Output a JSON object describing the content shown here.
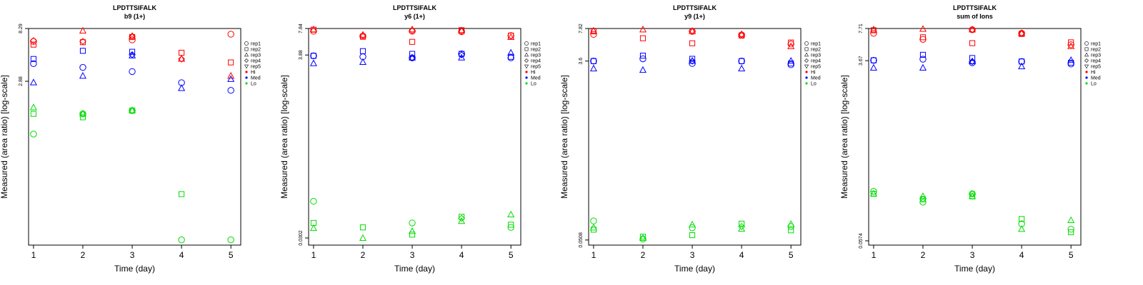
{
  "colors": {
    "Hi": "#ff0000",
    "Med": "#0000ff",
    "Lo": "#00dd00",
    "axis": "#000000"
  },
  "legend": {
    "entries": [
      {
        "label": "rep1",
        "symbol": "circle"
      },
      {
        "label": "rep2",
        "symbol": "square"
      },
      {
        "label": "rep3",
        "symbol": "triangle-up"
      },
      {
        "label": "rep4",
        "symbol": "diamond"
      },
      {
        "label": "rep5",
        "symbol": "triangle-down"
      },
      {
        "label": "Hi",
        "symbol": "dot",
        "color_key": "Hi"
      },
      {
        "label": "Med",
        "symbol": "dot",
        "color_key": "Med"
      },
      {
        "label": "Lo",
        "symbol": "dot",
        "color_key": "Lo"
      }
    ],
    "placement": "right"
  },
  "chart_data": [
    {
      "type": "scatter",
      "title": "LPDTTSIFALK",
      "subtitle": "b9 (1+)",
      "xlabel": "Time (day)",
      "ylabel": "Measured (area ratio) [log-scale]",
      "y_scale": "log",
      "x": [
        1,
        2,
        3,
        4,
        5
      ],
      "xlim": [
        0.9,
        5.2
      ],
      "ylim": [
        0.108,
        8.29
      ],
      "y_ticks": [
        "2.88",
        "8.29"
      ],
      "y_tick_values": [
        2.88,
        8.29
      ],
      "series": [
        {
          "level": "Hi",
          "rep": "rep1",
          "values": [
            6.4,
            null,
            6.6,
            null,
            7.4
          ]
        },
        {
          "level": "Hi",
          "rep": "rep2",
          "values": [
            6.0,
            6.3,
            7.0,
            5.1,
            4.2
          ]
        },
        {
          "level": "Hi",
          "rep": "rep3",
          "values": [
            null,
            7.9,
            7.1,
            4.5,
            3.2
          ]
        },
        {
          "level": "Hi",
          "rep": "rep4",
          "values": [
            6.5,
            6.4,
            7.1,
            4.5,
            null
          ]
        },
        {
          "level": "Med",
          "rep": "rep1",
          "values": [
            4.1,
            3.8,
            3.5,
            2.8,
            2.4
          ]
        },
        {
          "level": "Med",
          "rep": "rep2",
          "values": [
            4.5,
            5.3,
            5.2,
            null,
            null
          ]
        },
        {
          "level": "Med",
          "rep": "rep3",
          "values": [
            2.8,
            3.2,
            4.8,
            2.5,
            3.0
          ]
        },
        {
          "level": "Med",
          "rep": "rep4",
          "values": [
            null,
            null,
            4.9,
            null,
            null
          ]
        },
        {
          "level": "Lo",
          "rep": "rep1",
          "values": [
            1.0,
            1.5,
            1.6,
            0.12,
            0.12
          ]
        },
        {
          "level": "Lo",
          "rep": "rep2",
          "values": [
            1.5,
            1.4,
            1.6,
            0.3,
            null
          ]
        },
        {
          "level": "Lo",
          "rep": "rep3",
          "values": [
            1.7,
            1.5,
            1.6,
            null,
            null
          ]
        },
        {
          "level": "Lo",
          "rep": "rep4",
          "values": [
            null,
            1.5,
            1.6,
            null,
            null
          ]
        }
      ]
    },
    {
      "type": "scatter",
      "title": "LPDTTSIFALK",
      "subtitle": "y6 (1+)",
      "xlabel": "Time (day)",
      "ylabel": "Measured (area ratio) [log-scale]",
      "y_scale": "log",
      "x": [
        1,
        2,
        3,
        4,
        5
      ],
      "xlim": [
        0.9,
        5.2
      ],
      "ylim": [
        0.025,
        7.84
      ],
      "y_ticks": [
        "0.0302",
        "3.88",
        "7.84"
      ],
      "y_tick_values": [
        0.0302,
        3.88,
        7.84
      ],
      "series": [
        {
          "level": "Hi",
          "rep": "rep1",
          "values": [
            7.3,
            6.4,
            7.3,
            7.2,
            6.5
          ]
        },
        {
          "level": "Hi",
          "rep": "rep2",
          "values": [
            7.6,
            6.3,
            5.5,
            7.5,
            6.5
          ]
        },
        {
          "level": "Hi",
          "rep": "rep3",
          "values": [
            7.6,
            6.6,
            7.6,
            7.4,
            6.2
          ]
        },
        {
          "level": "Hi",
          "rep": "rep4",
          "values": [
            null,
            6.5,
            7.4,
            7.3,
            null
          ]
        },
        {
          "level": "Med",
          "rep": "rep1",
          "values": [
            3.8,
            3.7,
            3.6,
            4.0,
            3.6
          ]
        },
        {
          "level": "Med",
          "rep": "rep2",
          "values": [
            3.8,
            4.3,
            4.0,
            4.0,
            3.7
          ]
        },
        {
          "level": "Med",
          "rep": "rep3",
          "values": [
            3.1,
            3.2,
            3.6,
            3.6,
            4.1
          ]
        },
        {
          "level": "Med",
          "rep": "rep4",
          "values": [
            null,
            null,
            3.6,
            3.9,
            null
          ]
        },
        {
          "level": "Lo",
          "rep": "rep1",
          "values": [
            0.08,
            null,
            0.045,
            null,
            0.04
          ]
        },
        {
          "level": "Lo",
          "rep": "rep2",
          "values": [
            0.045,
            0.04,
            0.033,
            0.053,
            0.043
          ]
        },
        {
          "level": "Lo",
          "rep": "rep3",
          "values": [
            0.039,
            0.03,
            0.036,
            0.047,
            0.056
          ]
        },
        {
          "level": "Lo",
          "rep": "rep4",
          "values": [
            null,
            null,
            null,
            0.051,
            null
          ]
        }
      ]
    },
    {
      "type": "scatter",
      "title": "LPDTTSIFALK",
      "subtitle": "y9 (1+)",
      "xlabel": "Time (day)",
      "ylabel": "Measured (area ratio) [log-scale]",
      "y_scale": "log",
      "x": [
        1,
        2,
        3,
        4,
        5
      ],
      "xlim": [
        0.9,
        5.2
      ],
      "ylim": [
        0.045,
        7.82
      ],
      "y_ticks": [
        "0.0508",
        "3.6",
        "7.82"
      ],
      "y_tick_values": [
        0.0508,
        3.6,
        7.82
      ],
      "series": [
        {
          "level": "Hi",
          "rep": "rep1",
          "values": [
            6.8,
            null,
            7.3,
            6.7,
            5.4
          ]
        },
        {
          "level": "Hi",
          "rep": "rep2",
          "values": [
            7.3,
            6.2,
            5.5,
            6.6,
            5.6
          ]
        },
        {
          "level": "Hi",
          "rep": "rep3",
          "values": [
            7.4,
            7.6,
            7.3,
            6.8,
            5.1
          ]
        },
        {
          "level": "Hi",
          "rep": "rep4",
          "values": [
            null,
            null,
            7.4,
            6.8,
            null
          ]
        },
        {
          "level": "Med",
          "rep": "rep1",
          "values": [
            3.6,
            3.8,
            3.4,
            3.6,
            3.3
          ]
        },
        {
          "level": "Med",
          "rep": "rep2",
          "values": [
            3.6,
            4.1,
            3.8,
            3.6,
            3.4
          ]
        },
        {
          "level": "Med",
          "rep": "rep3",
          "values": [
            3.0,
            2.9,
            3.6,
            3.0,
            3.6
          ]
        },
        {
          "level": "Med",
          "rep": "rep4",
          "values": [
            null,
            null,
            3.6,
            null,
            null
          ]
        },
        {
          "level": "Lo",
          "rep": "rep1",
          "values": [
            0.08,
            0.052,
            0.068,
            null,
            0.07
          ]
        },
        {
          "level": "Lo",
          "rep": "rep2",
          "values": [
            0.065,
            0.055,
            0.057,
            0.075,
            0.064
          ]
        },
        {
          "level": "Lo",
          "rep": "rep3",
          "values": [
            0.068,
            0.053,
            0.073,
            0.066,
            0.074
          ]
        },
        {
          "level": "Lo",
          "rep": "rep4",
          "values": [
            null,
            null,
            null,
            0.07,
            null
          ]
        }
      ]
    },
    {
      "type": "scatter",
      "title": "LPDTTSIFALK",
      "subtitle": "sum of Ions",
      "xlabel": "Time (day)",
      "ylabel": "Measured (area ratio) [log-scale]",
      "y_scale": "log",
      "x": [
        1,
        2,
        3,
        4,
        5
      ],
      "xlim": [
        0.9,
        5.2
      ],
      "ylim": [
        0.052,
        7.71
      ],
      "y_ticks": [
        "0.0574",
        "3.67",
        "7.71"
      ],
      "y_tick_values": [
        0.0574,
        3.67,
        7.71
      ],
      "series": [
        {
          "level": "Hi",
          "rep": "rep1",
          "values": [
            6.9,
            6.0,
            7.5,
            6.9,
            5.3
          ]
        },
        {
          "level": "Hi",
          "rep": "rep2",
          "values": [
            7.4,
            6.3,
            5.5,
            6.8,
            5.6
          ]
        },
        {
          "level": "Hi",
          "rep": "rep3",
          "values": [
            7.5,
            7.6,
            7.5,
            6.9,
            5.1
          ]
        },
        {
          "level": "Hi",
          "rep": "rep4",
          "values": [
            null,
            null,
            7.5,
            6.9,
            null
          ]
        },
        {
          "level": "Med",
          "rep": "rep1",
          "values": [
            3.7,
            3.8,
            3.5,
            3.6,
            3.4
          ]
        },
        {
          "level": "Med",
          "rep": "rep2",
          "values": [
            3.7,
            4.2,
            3.9,
            3.6,
            3.5
          ]
        },
        {
          "level": "Med",
          "rep": "rep3",
          "values": [
            3.1,
            3.1,
            3.6,
            3.2,
            3.7
          ]
        },
        {
          "level": "Med",
          "rep": "rep4",
          "values": [
            null,
            null,
            3.6,
            null,
            null
          ]
        },
        {
          "level": "Lo",
          "rep": "rep1",
          "values": [
            0.18,
            0.14,
            0.17,
            0.085,
            0.075
          ]
        },
        {
          "level": "Lo",
          "rep": "rep2",
          "values": [
            0.17,
            0.15,
            0.16,
            0.095,
            0.07
          ]
        },
        {
          "level": "Lo",
          "rep": "rep3",
          "values": [
            0.17,
            0.16,
            0.16,
            0.075,
            0.092
          ]
        },
        {
          "level": "Lo",
          "rep": "rep4",
          "values": [
            null,
            0.15,
            0.17,
            null,
            null
          ]
        }
      ]
    }
  ]
}
